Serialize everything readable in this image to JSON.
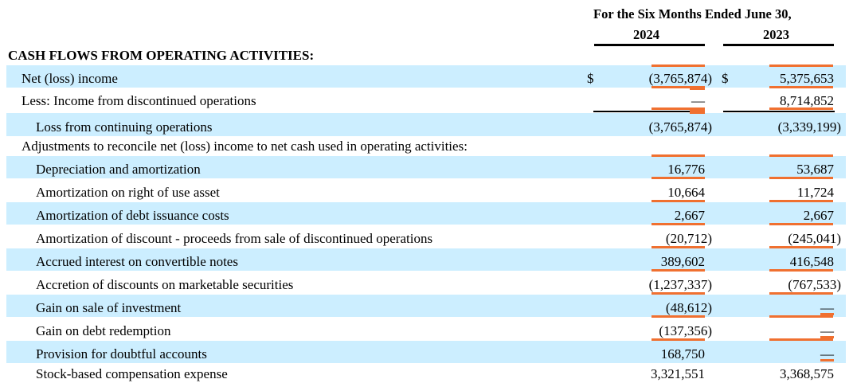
{
  "header": {
    "period": "For the Six Months Ended June 30,",
    "year_1": "2024",
    "year_2": "2023"
  },
  "section_title": "CASH FLOWS FROM OPERATING ACTIVITIES:",
  "currency_symbol": "$",
  "rows": [
    {
      "label": "Net (loss) income",
      "v2024": "(3,765,874)",
      "v2023": "5,375,653"
    },
    {
      "label": "Less: Income from discontinued operations",
      "v2024": "—",
      "v2023": "8,714,852"
    },
    {
      "label": "Loss from continuing operations",
      "v2024": "(3,765,874)",
      "v2023": "(3,339,199)"
    },
    {
      "label": "Adjustments to reconcile net (loss) income to net cash used in operating activities:"
    },
    {
      "label": "Depreciation and amortization",
      "v2024": "16,776",
      "v2023": "53,687"
    },
    {
      "label": "Amortization on right of use asset",
      "v2024": "10,664",
      "v2023": "11,724"
    },
    {
      "label": "Amortization of debt issuance costs",
      "v2024": "2,667",
      "v2023": "2,667"
    },
    {
      "label": "Amortization of discount - proceeds from sale of discontinued operations",
      "v2024": "(20,712)",
      "v2023": "(245,041)"
    },
    {
      "label": "Accrued interest on convertible notes",
      "v2024": "389,602",
      "v2023": "416,548"
    },
    {
      "label": "Accretion of discounts on marketable securities",
      "v2024": "(1,237,337)",
      "v2023": "(767,533)"
    },
    {
      "label": "Gain on sale of investment",
      "v2024": "(48,612)",
      "v2023": "—"
    },
    {
      "label": "Gain on debt redemption",
      "v2024": "(137,356)",
      "v2023": "—"
    },
    {
      "label": "Provision for doubtful accounts",
      "v2024": "168,750",
      "v2023": "—"
    },
    {
      "label": "Stock-based compensation expense",
      "v2024": "3,321,551",
      "v2023": "3,368,575"
    }
  ],
  "colors": {
    "row_shade": "#cceeff",
    "highlight_bar": "#f07030",
    "text": "#000000"
  }
}
